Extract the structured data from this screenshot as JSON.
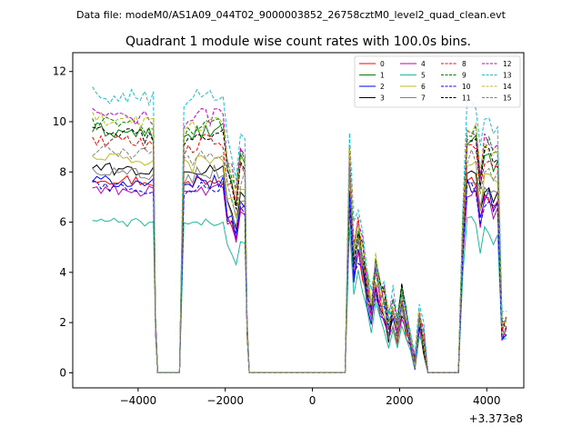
{
  "chart_data": {
    "type": "line",
    "suptitle": "Data file: modeM0/AS1A09_044T02_9000003852_26758cztM0_level2_quad_clean.evt",
    "title": "Quadrant 1 module wise count rates with 100.0s bins.",
    "xlabel": "",
    "ylabel": "",
    "x_offset_label": "+3.373e8",
    "xlim": [
      -5500,
      4850
    ],
    "ylim": [
      -0.6,
      12.75
    ],
    "xticks": [
      -4000,
      -2000,
      0,
      2000,
      4000
    ],
    "xtick_labels": [
      "−4000",
      "−2000",
      "0",
      "2000",
      "4000"
    ],
    "yticks": [
      0,
      2,
      4,
      6,
      8,
      10,
      12
    ],
    "ytick_labels": [
      "0",
      "2",
      "4",
      "6",
      "8",
      "10",
      "12"
    ],
    "legend": {
      "placement": "top-right",
      "columns": 4
    },
    "segments": [
      {
        "t_start": -5050,
        "t_end": -3650,
        "shape": "active1",
        "dropto": -3550
      },
      {
        "t_start": -3550,
        "t_end": -3050,
        "shape": "zero"
      },
      {
        "t_start": -2950,
        "t_end": -1550,
        "shape": "active2",
        "dropto": -1450
      },
      {
        "t_start": -1450,
        "t_end": 750,
        "shape": "zero"
      },
      {
        "t_start": 850,
        "t_end": 2550,
        "shape": "active3"
      },
      {
        "t_start": 2650,
        "t_end": 3350,
        "shape": "zero"
      },
      {
        "t_start": 3450,
        "t_end": 4450,
        "shape": "active4"
      }
    ],
    "series": [
      {
        "name": "0",
        "color": "#ff0000",
        "dash": "solid",
        "level": 7.7
      },
      {
        "name": "1",
        "color": "#008000",
        "dash": "solid",
        "level": 9.6
      },
      {
        "name": "2",
        "color": "#0000ff",
        "dash": "solid",
        "level": 7.6
      },
      {
        "name": "3",
        "color": "#000000",
        "dash": "solid",
        "level": 8.1
      },
      {
        "name": "4",
        "color": "#bf00bf",
        "dash": "solid",
        "level": 7.3
      },
      {
        "name": "5",
        "color": "#1abc9c",
        "dash": "solid",
        "level": 6.0
      },
      {
        "name": "6",
        "color": "#bcbd22",
        "dash": "solid",
        "level": 8.5
      },
      {
        "name": "7",
        "color": "#808080",
        "dash": "solid",
        "level": 8.0
      },
      {
        "name": "8",
        "color": "#ff0000",
        "dash": "dashed",
        "level": 9.2
      },
      {
        "name": "9",
        "color": "#008000",
        "dash": "dashed",
        "level": 9.9
      },
      {
        "name": "10",
        "color": "#0000ff",
        "dash": "dashed",
        "level": 7.4
      },
      {
        "name": "11",
        "color": "#000000",
        "dash": "dashed",
        "level": 9.5
      },
      {
        "name": "12",
        "color": "#bf00bf",
        "dash": "dashed",
        "level": 10.2
      },
      {
        "name": "13",
        "color": "#17becf",
        "dash": "dashed",
        "level": 11.0
      },
      {
        "name": "14",
        "color": "#bcbd22",
        "dash": "dashed",
        "level": 10.0
      },
      {
        "name": "15",
        "color": "#808080",
        "dash": "dashed",
        "level": 8.8
      }
    ]
  }
}
